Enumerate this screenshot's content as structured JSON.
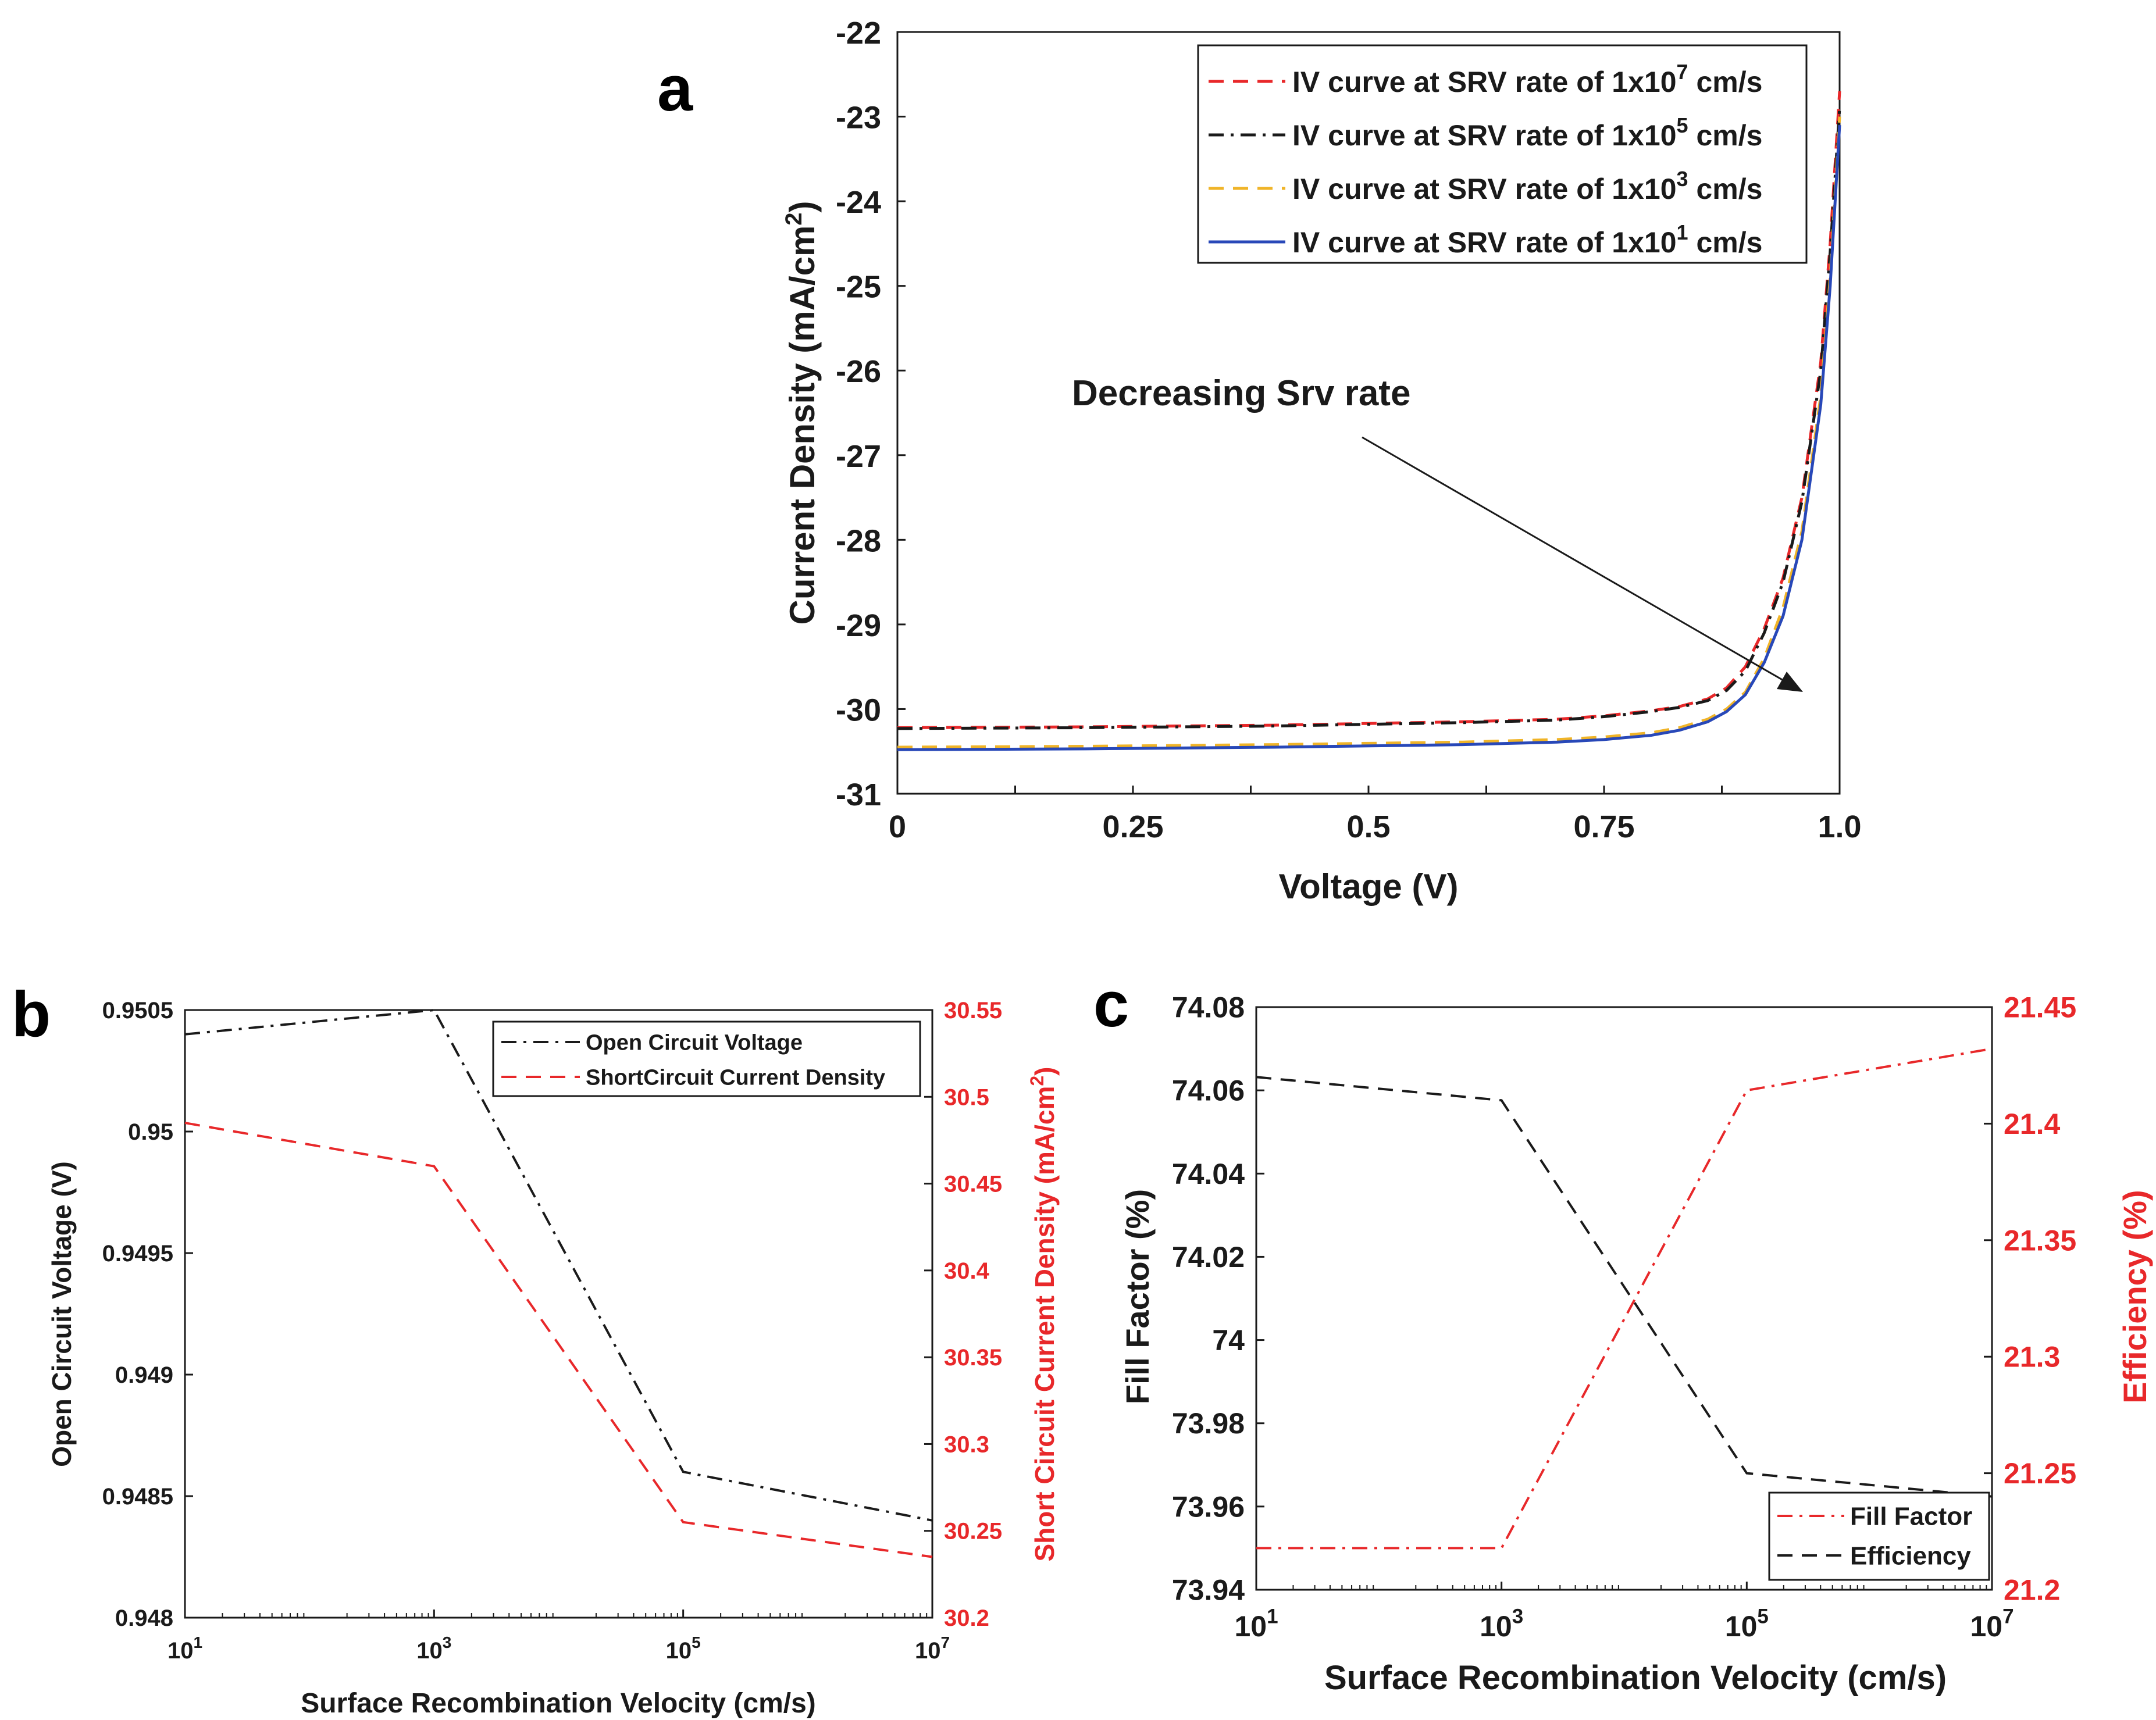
{
  "chart_data": [
    {
      "panel": "a",
      "type": "line",
      "xlabel": "Voltage (V)",
      "ylabel": "Current Density (mA/cm",
      "ylabel_sup": "2",
      "ylabel_close": ")",
      "xlim": [
        0,
        1.0
      ],
      "ylim": [
        -31,
        -22
      ],
      "xticks": [
        0,
        0.25,
        0.5,
        0.75,
        1.0
      ],
      "xtick_labels": [
        "0",
        "0.25",
        "0.5",
        "0.75",
        "1.0"
      ],
      "yticks": [
        -31,
        -30,
        -29,
        -28,
        -27,
        -26,
        -25,
        -24,
        -23,
        -22
      ],
      "ytick_labels": [
        "-31",
        "-30",
        "-29",
        "-28",
        "-27",
        "-26",
        "-25",
        "-24",
        "-23",
        "-22"
      ],
      "annotation": "Decreasing Srv rate",
      "legend_position": "top-right",
      "series": [
        {
          "name": "IV curve at SRV rate of 1x10",
          "exp": "7",
          "unit": " cm/s",
          "color": "#e8282a",
          "dash": "dash",
          "x": [
            0,
            0.2,
            0.4,
            0.6,
            0.7,
            0.75,
            0.8,
            0.83,
            0.86,
            0.88,
            0.9,
            0.92,
            0.94,
            0.96,
            0.98,
            0.99,
            1.0
          ],
          "y": [
            -30.22,
            -30.21,
            -30.19,
            -30.15,
            -30.12,
            -30.08,
            -30.02,
            -29.97,
            -29.88,
            -29.75,
            -29.5,
            -29.05,
            -28.45,
            -27.5,
            -25.9,
            -24.5,
            -22.7
          ]
        },
        {
          "name": "IV curve at SRV rate of 1x10",
          "exp": "5",
          "unit": " cm/s",
          "color": "#1a1a1a",
          "dash": "dashdot",
          "x": [
            0,
            0.2,
            0.4,
            0.6,
            0.7,
            0.75,
            0.8,
            0.83,
            0.86,
            0.88,
            0.9,
            0.92,
            0.94,
            0.96,
            0.98,
            0.99,
            1.0
          ],
          "y": [
            -30.23,
            -30.22,
            -30.2,
            -30.16,
            -30.13,
            -30.09,
            -30.03,
            -29.98,
            -29.9,
            -29.78,
            -29.55,
            -29.1,
            -28.5,
            -27.55,
            -26.0,
            -24.6,
            -22.9
          ]
        },
        {
          "name": "IV curve at SRV rate of 1x10",
          "exp": "3",
          "unit": " cm/s",
          "color": "#f0b428",
          "dash": "dash",
          "x": [
            0,
            0.2,
            0.4,
            0.6,
            0.7,
            0.75,
            0.8,
            0.83,
            0.86,
            0.88,
            0.9,
            0.92,
            0.94,
            0.96,
            0.98,
            0.99,
            1.0
          ],
          "y": [
            -30.45,
            -30.44,
            -30.42,
            -30.39,
            -30.36,
            -30.33,
            -30.28,
            -30.22,
            -30.12,
            -30.0,
            -29.8,
            -29.4,
            -28.8,
            -27.9,
            -26.3,
            -24.9,
            -23.0
          ]
        },
        {
          "name": "IV curve at SRV rate of 1x10",
          "exp": "1",
          "unit": " cm/s",
          "color": "#2848b8",
          "dash": "solid",
          "x": [
            0,
            0.2,
            0.4,
            0.6,
            0.7,
            0.75,
            0.8,
            0.83,
            0.86,
            0.88,
            0.9,
            0.92,
            0.94,
            0.96,
            0.98,
            0.99,
            1.0
          ],
          "y": [
            -30.48,
            -30.47,
            -30.45,
            -30.42,
            -30.39,
            -30.36,
            -30.31,
            -30.25,
            -30.15,
            -30.03,
            -29.83,
            -29.45,
            -28.9,
            -28.0,
            -26.4,
            -25.0,
            -23.1
          ]
        }
      ]
    },
    {
      "panel": "b",
      "type": "line",
      "xlabel": "Surface Recombination Velocity (cm/s)",
      "ylabel": "Open Circuit Voltage (V)",
      "ylabel_right": "Short Circuit Current Density (mA/cm",
      "ylabel_right_sup": "2",
      "ylabel_right_close": ")",
      "xscale": "log",
      "x_exponents": [
        1,
        3,
        5,
        7
      ],
      "x_base": "10",
      "ylim": [
        0.948,
        0.9505
      ],
      "yticks": [
        0.948,
        0.9485,
        0.949,
        0.9495,
        0.95,
        0.9505
      ],
      "ytick_labels": [
        "0.948",
        "0.9485",
        "0.949",
        "0.9495",
        "0.95",
        "0.9505"
      ],
      "ylim_right": [
        30.2,
        30.55
      ],
      "yticks_right": [
        30.2,
        30.25,
        30.3,
        30.35,
        30.4,
        30.45,
        30.5,
        30.55
      ],
      "ytick_labels_right": [
        "30.2",
        "30.25",
        "30.3",
        "30.35",
        "30.4",
        "30.45",
        "30.5",
        "30.55"
      ],
      "legend_position": "top-right",
      "series": [
        {
          "name": "Open Circuit Voltage",
          "axis": "left",
          "color": "#1a1a1a",
          "dash": "dashdot",
          "x_exp": [
            1,
            3,
            5,
            7
          ],
          "values": [
            0.9504,
            0.9505,
            0.9486,
            0.9484
          ]
        },
        {
          "name": "ShortCircuit Current Density",
          "axis": "right",
          "color": "#e8282a",
          "dash": "dash",
          "x_exp": [
            1,
            3,
            5,
            7
          ],
          "values": [
            30.485,
            30.46,
            30.255,
            30.235
          ]
        }
      ]
    },
    {
      "panel": "c",
      "type": "line",
      "xlabel": "Surface Recombination Velocity (cm/s)",
      "ylabel": "Fill Factor (%)",
      "ylabel_right": "Efficiency (%)",
      "xscale": "log",
      "x_exponents": [
        1,
        3,
        5,
        7
      ],
      "x_base": "10",
      "ylim": [
        73.94,
        74.08
      ],
      "yticks": [
        73.94,
        73.96,
        73.98,
        74,
        74.02,
        74.04,
        74.06,
        74.08
      ],
      "ytick_labels": [
        "73.94",
        "73.96",
        "73.98",
        "74",
        "74.02",
        "74.04",
        "74.06",
        "74.08"
      ],
      "ylim_right": [
        21.2,
        21.45
      ],
      "yticks_right": [
        21.2,
        21.25,
        21.3,
        21.35,
        21.4,
        21.45
      ],
      "ytick_labels_right": [
        "21.2",
        "21.25",
        "21.3",
        "21.35",
        "21.4",
        "21.45"
      ],
      "legend_position": "bottom-right",
      "series": [
        {
          "name": "Fill Factor",
          "axis": "left",
          "color": "#e8282a",
          "dash": "dashdot",
          "x_exp": [
            1,
            3,
            5,
            7
          ],
          "values": [
            73.95,
            73.95,
            74.06,
            74.07
          ]
        },
        {
          "name": "Efficiency",
          "axis": "right",
          "color": "#1a1a1a",
          "dash": "dash",
          "x_exp": [
            1,
            3,
            5,
            7
          ],
          "values": [
            21.42,
            21.41,
            21.25,
            21.24
          ]
        }
      ]
    }
  ]
}
